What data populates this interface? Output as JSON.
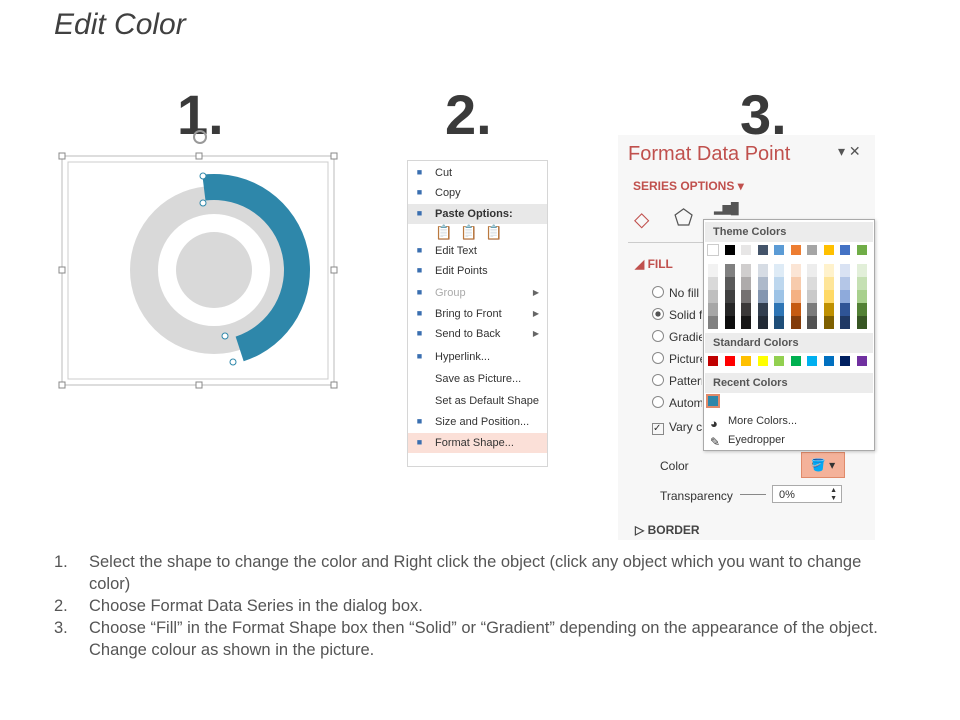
{
  "title": "Edit Color",
  "step_numbers": [
    "1.",
    "2.",
    "3."
  ],
  "chart_colors": {
    "arc": "#2e87aa",
    "ring": "#d9d9d9"
  },
  "context_menu": {
    "items": [
      {
        "label": "Cut",
        "icon": "scissors-icon"
      },
      {
        "label": "Copy",
        "icon": "copy-icon"
      },
      {
        "label": "Paste Options:",
        "icon": "paste-icon"
      },
      {
        "label": "Edit Text",
        "icon": "edit-text-icon"
      },
      {
        "label": "Edit Points",
        "icon": "edit-points-icon"
      },
      {
        "label": "Group",
        "icon": "group-icon",
        "disabled": true
      },
      {
        "label": "Bring to Front",
        "icon": "bring-front-icon"
      },
      {
        "label": "Send to Back",
        "icon": "send-back-icon"
      },
      {
        "label": "Hyperlink...",
        "icon": "hyperlink-icon"
      },
      {
        "label": "Save as Picture..."
      },
      {
        "label": "Set as Default Shape"
      },
      {
        "label": "Size and Position...",
        "icon": "size-icon"
      },
      {
        "label": "Format Shape...",
        "icon": "format-shape-icon"
      }
    ]
  },
  "panel": {
    "title": "Format Data Point",
    "series_options": "SERIES OPTIONS",
    "fill": "FILL",
    "options": [
      "No fill",
      "Solid fill",
      "Gradient fill",
      "Picture or texture fill",
      "Pattern fill",
      "Automatic"
    ],
    "vary": "Vary colors by point",
    "color_label": "Color",
    "transparency_label": "Transparency",
    "transparency_value": "0%",
    "border": "BORDER"
  },
  "picker": {
    "theme": "Theme Colors",
    "standard": "Standard Colors",
    "recent": "Recent Colors",
    "more": "More Colors...",
    "eyedropper": "Eyedropper",
    "theme_top": [
      "#ffffff",
      "#000000",
      "#e7e6e6",
      "#44546a",
      "#5b9bd5",
      "#ed7d31",
      "#a5a5a5",
      "#ffc000",
      "#4472c4",
      "#70ad47"
    ],
    "theme_shades": [
      [
        "#f2f2f2",
        "#d9d9d9",
        "#bfbfbf",
        "#a6a6a6",
        "#808080"
      ],
      [
        "#808080",
        "#595959",
        "#404040",
        "#262626",
        "#0d0d0d"
      ],
      [
        "#d0cece",
        "#aeabab",
        "#757171",
        "#3b3838",
        "#171616"
      ],
      [
        "#d6dce4",
        "#adb9ca",
        "#8496b0",
        "#333f4f",
        "#222a35"
      ],
      [
        "#deebf6",
        "#bdd7ee",
        "#9dc3e6",
        "#2e75b5",
        "#1f4e79"
      ],
      [
        "#fbe5d5",
        "#f7cbac",
        "#f4b183",
        "#c55a11",
        "#833c0b"
      ],
      [
        "#ededed",
        "#dbdbdb",
        "#c9c9c9",
        "#7b7b7b",
        "#525252"
      ],
      [
        "#fff2cc",
        "#fee599",
        "#ffd965",
        "#bf9000",
        "#7f6000"
      ],
      [
        "#d9e2f3",
        "#b4c6e7",
        "#8eaadb",
        "#2f5496",
        "#1f3864"
      ],
      [
        "#e2efd9",
        "#c5e0b3",
        "#a8d08d",
        "#538135",
        "#375623"
      ]
    ],
    "standard_colors": [
      "#c00000",
      "#ff0000",
      "#ffc000",
      "#ffff00",
      "#92d050",
      "#00b050",
      "#00b0f0",
      "#0070c0",
      "#002060",
      "#7030a0"
    ],
    "recent_colors": [
      "#2e87aa"
    ]
  },
  "steps": [
    {
      "n": "1.",
      "text": "Select the shape to change the color and Right click the object (click any object which you want to change color)"
    },
    {
      "n": "2.",
      "text": "Choose Format Data Series in the dialog box."
    },
    {
      "n": "3.",
      "text": "Choose “Fill” in the Format Shape box then “Solid” or “Gradient” depending on the appearance of the object. Change colour as shown in the picture."
    }
  ]
}
